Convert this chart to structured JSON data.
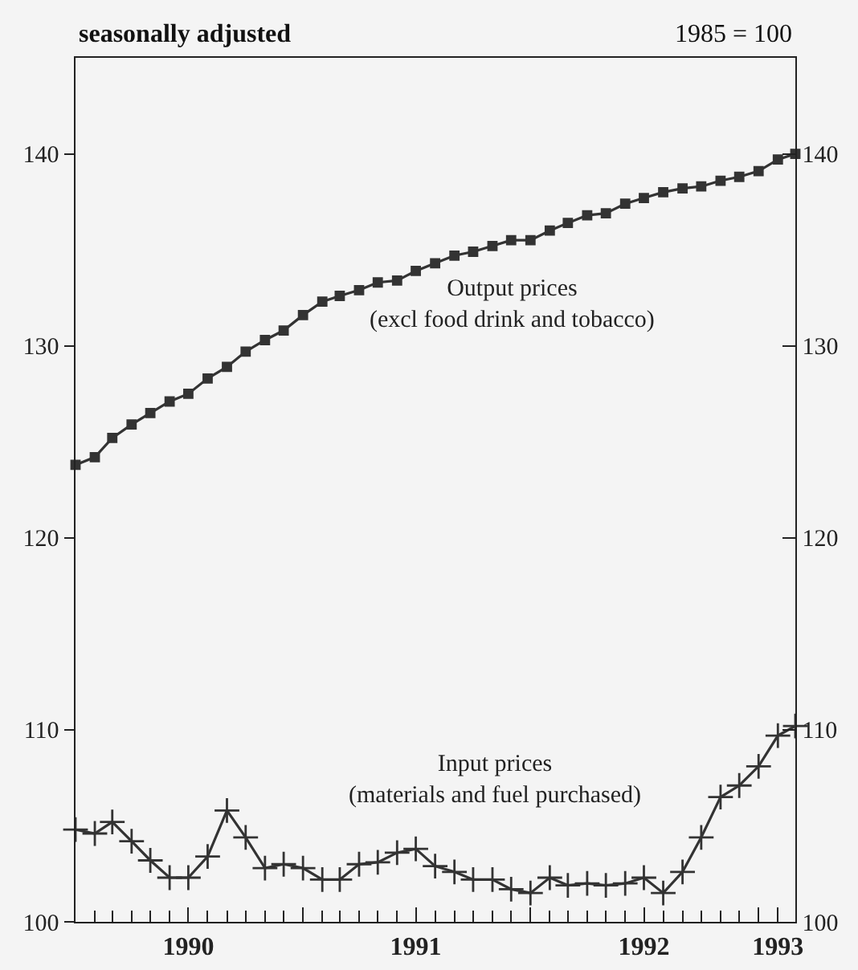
{
  "chart_data": {
    "type": "line",
    "annotations": [
      "seasonally adjusted",
      "1985 = 100"
    ],
    "x": [
      "1990-01",
      "1990-02",
      "1990-03",
      "1990-04",
      "1990-05",
      "1990-06",
      "1990-07",
      "1990-08",
      "1990-09",
      "1990-10",
      "1990-11",
      "1990-12",
      "1991-01",
      "1991-02",
      "1991-03",
      "1991-04",
      "1991-05",
      "1991-06",
      "1991-07",
      "1991-08",
      "1991-09",
      "1991-10",
      "1991-11",
      "1991-12",
      "1992-01",
      "1992-02",
      "1992-03",
      "1992-04",
      "1992-05",
      "1992-06",
      "1992-07",
      "1992-08",
      "1992-09",
      "1992-10",
      "1992-11",
      "1992-12",
      "1993-01",
      "1993-02",
      "1993-03"
    ],
    "series": [
      {
        "name": "Output prices (excl food drink and tobacco)",
        "color": "#333333",
        "marker": "square",
        "values": [
          123.8,
          124.2,
          125.2,
          125.9,
          126.5,
          127.1,
          127.5,
          128.3,
          128.9,
          129.7,
          130.3,
          130.8,
          131.6,
          132.3,
          132.6,
          132.9,
          133.3,
          133.4,
          133.9,
          134.3,
          134.7,
          134.9,
          135.2,
          135.5,
          135.5,
          136.0,
          136.4,
          136.8,
          136.9,
          137.4,
          137.7,
          138.0,
          138.2,
          138.3,
          138.6,
          138.8,
          139.1,
          139.7,
          140.0
        ]
      },
      {
        "name": "Input prices (materials and fuel purchased)",
        "color": "#333333",
        "marker": "cross",
        "values": [
          104.8,
          104.6,
          105.2,
          104.2,
          103.2,
          102.3,
          102.3,
          103.4,
          105.8,
          104.4,
          102.8,
          103.0,
          102.8,
          102.2,
          102.2,
          103.0,
          103.1,
          103.6,
          103.8,
          102.9,
          102.6,
          102.2,
          102.2,
          101.7,
          101.5,
          102.3,
          101.9,
          102.0,
          101.9,
          102.0,
          102.3,
          101.5,
          102.6,
          104.4,
          106.5,
          107.1,
          108.1,
          109.7,
          110.2
        ]
      }
    ],
    "xlim": [
      "1990-01",
      "1993-03"
    ],
    "xticks": [
      {
        "value": "1990-07",
        "label": "1990"
      },
      {
        "value": "1991-01",
        "label": null
      },
      {
        "value": "1991-07",
        "label": "1991"
      },
      {
        "value": "1992-01",
        "label": null
      },
      {
        "value": "1992-07",
        "label": "1992"
      },
      {
        "value": "1993-01",
        "label": null
      },
      {
        "value": "1993-02",
        "label": "1993"
      }
    ],
    "ylim": [
      100,
      145
    ],
    "yticks": [
      100,
      110,
      120,
      130,
      140
    ],
    "y2lim": [
      100,
      145
    ],
    "y2ticks": [
      100,
      110,
      120,
      130,
      140
    ],
    "grid": false,
    "legend": false,
    "line_style": "solid"
  }
}
